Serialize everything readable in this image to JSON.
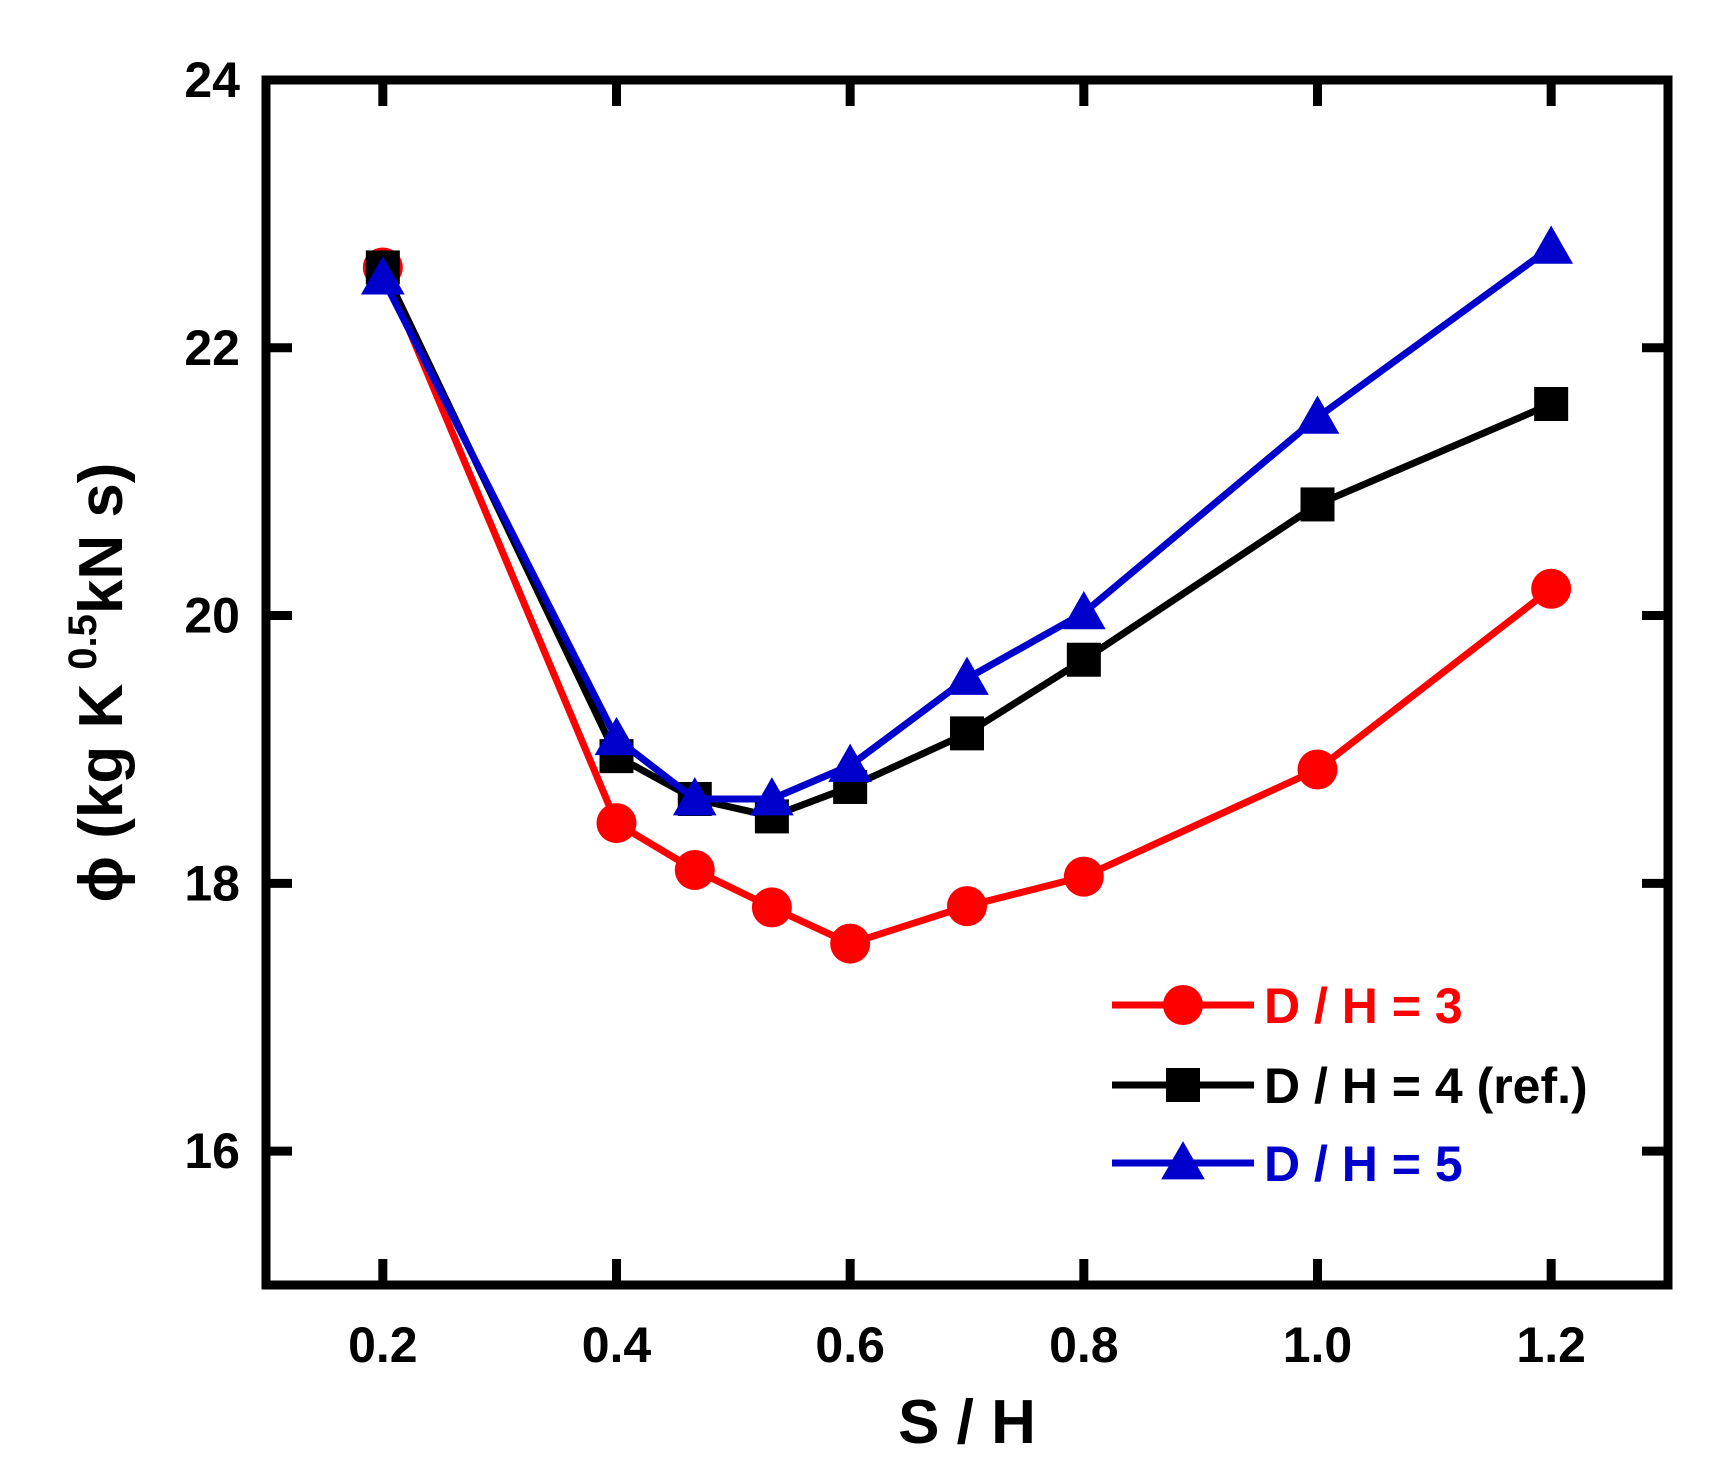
{
  "chart_data": {
    "type": "line",
    "title": "",
    "xlabel": "S / H",
    "ylabel": {
      "prefix": "ϕ (kg K",
      "superscript": "0.5",
      "suffix": "kN s)"
    },
    "xlim": [
      0.1,
      1.3
    ],
    "ylim": [
      15,
      24
    ],
    "xticks": [
      0.2,
      0.4,
      0.6,
      0.8,
      1.0,
      1.2
    ],
    "xtick_labels": [
      "0.2",
      "0.4",
      "0.6",
      "0.8",
      "1.0",
      "1.2"
    ],
    "yticks": [
      16,
      18,
      20,
      22,
      24
    ],
    "ytick_labels": [
      "16",
      "18",
      "20",
      "22",
      "24"
    ],
    "grid": false,
    "legend_position": "bottom-right",
    "series": [
      {
        "name": "D / H = 3",
        "color": "#ff0000",
        "marker": "circle",
        "x": [
          0.2,
          0.4,
          0.467,
          0.533,
          0.6,
          0.7,
          0.8,
          1.0,
          1.2
        ],
        "y": [
          22.6,
          18.45,
          18.1,
          17.82,
          17.55,
          17.83,
          18.05,
          18.85,
          20.2
        ]
      },
      {
        "name": "D / H = 4 (ref.)",
        "color": "#000000",
        "marker": "square",
        "x": [
          0.2,
          0.4,
          0.467,
          0.533,
          0.6,
          0.7,
          0.8,
          1.0,
          1.2
        ],
        "y": [
          22.6,
          18.95,
          18.63,
          18.5,
          18.72,
          19.12,
          19.67,
          20.83,
          21.58
        ]
      },
      {
        "name": "D / H = 5",
        "color": "#0000cc",
        "marker": "triangle",
        "x": [
          0.2,
          0.4,
          0.467,
          0.533,
          0.6,
          0.7,
          0.8,
          1.0,
          1.2
        ],
        "y": [
          22.52,
          19.08,
          18.63,
          18.63,
          18.88,
          19.53,
          20.02,
          21.48,
          22.75
        ]
      }
    ]
  }
}
